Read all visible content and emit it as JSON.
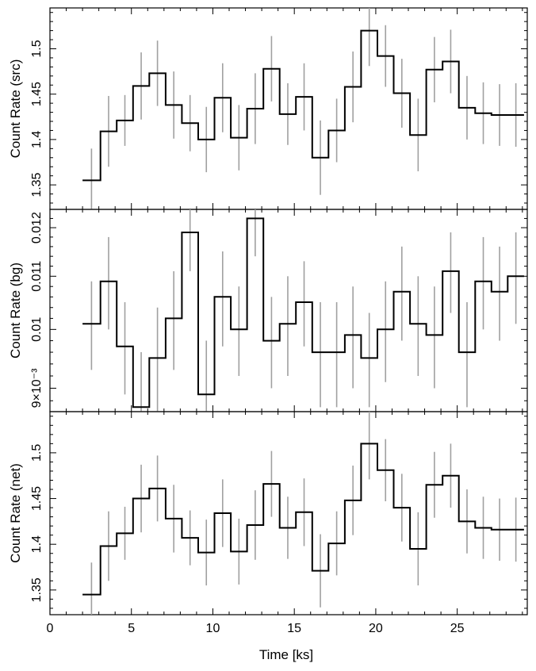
{
  "chart_data": {
    "type": "line",
    "drawstyle": "steps",
    "xlabel": "Time [ks]",
    "xlim": [
      0,
      29.3
    ],
    "xticks": [
      0,
      5,
      10,
      15,
      20,
      25
    ],
    "x": [
      2.0,
      3.1,
      4.1,
      5.1,
      6.1,
      7.1,
      8.1,
      9.1,
      10.1,
      11.1,
      12.1,
      13.1,
      14.1,
      15.1,
      16.1,
      17.1,
      18.1,
      19.1,
      20.1,
      21.1,
      22.1,
      23.1,
      24.1,
      25.1,
      26.1,
      27.1,
      28.1
    ],
    "x_end": 29.1,
    "panels": [
      {
        "name": "src",
        "ylabel": "Count Rate (src)",
        "ylim": [
          1.323,
          1.545
        ],
        "yticks": [
          1.35,
          1.4,
          1.45,
          1.5
        ],
        "ytick_labels": [
          "1.35",
          "1.4",
          "1.45",
          "1.5"
        ],
        "values": [
          1.355,
          1.409,
          1.421,
          1.459,
          1.473,
          1.438,
          1.418,
          1.4,
          1.446,
          1.402,
          1.434,
          1.478,
          1.428,
          1.447,
          1.38,
          1.41,
          1.458,
          1.52,
          1.492,
          1.451,
          1.405,
          1.477,
          1.486,
          1.435,
          1.429,
          1.427,
          1.427
        ],
        "errors": [
          0.035,
          0.039,
          0.028,
          0.037,
          0.036,
          0.037,
          0.031,
          0.036,
          0.038,
          0.036,
          0.039,
          0.036,
          0.034,
          0.037,
          0.041,
          0.035,
          0.039,
          0.039,
          0.034,
          0.038,
          0.04,
          0.036,
          0.035,
          0.035,
          0.034,
          0.034,
          0.035
        ]
      },
      {
        "name": "bg",
        "ylabel": "Count Rate (bg)",
        "ylim": [
          0.00863,
          0.0124
        ],
        "log": true,
        "yticks": [
          0.009,
          0.01,
          0.011,
          0.012
        ],
        "ytick_labels": [
          "9×10⁻³",
          "0.01",
          "0.011",
          "0.012"
        ],
        "values": [
          0.0101,
          0.0109,
          0.0097,
          0.0087,
          0.0095,
          0.0102,
          0.0119,
          0.0089,
          0.0106,
          0.01,
          0.0122,
          0.0098,
          0.0101,
          0.0105,
          0.0096,
          0.0096,
          0.0099,
          0.0095,
          0.01,
          0.0107,
          0.0101,
          0.0099,
          0.0111,
          0.0096,
          0.0109,
          0.0107,
          0.011
        ],
        "errors": [
          0.0008,
          0.0009,
          0.0008,
          0.0009,
          0.0009,
          0.0009,
          0.0008,
          0.0009,
          0.0009,
          0.0008,
          0.0008,
          0.0008,
          0.0009,
          0.0008,
          0.0009,
          0.0009,
          0.0009,
          0.0008,
          0.0009,
          0.0009,
          0.0009,
          0.0009,
          0.0008,
          0.0009,
          0.0009,
          0.0009,
          0.0009
        ]
      },
      {
        "name": "net",
        "ylabel": "Count Rate (net)",
        "ylim": [
          1.323,
          1.545
        ],
        "yticks": [
          1.35,
          1.4,
          1.45,
          1.5
        ],
        "ytick_labels": [
          "1.35",
          "1.4",
          "1.45",
          "1.5"
        ],
        "values": [
          1.345,
          1.398,
          1.412,
          1.45,
          1.461,
          1.428,
          1.407,
          1.391,
          1.434,
          1.392,
          1.421,
          1.466,
          1.418,
          1.435,
          1.371,
          1.401,
          1.448,
          1.51,
          1.481,
          1.44,
          1.395,
          1.465,
          1.475,
          1.425,
          1.418,
          1.416,
          1.416
        ],
        "errors": [
          0.035,
          0.038,
          0.029,
          0.037,
          0.036,
          0.037,
          0.03,
          0.036,
          0.037,
          0.036,
          0.038,
          0.036,
          0.034,
          0.037,
          0.04,
          0.035,
          0.038,
          0.039,
          0.034,
          0.037,
          0.04,
          0.036,
          0.035,
          0.035,
          0.034,
          0.034,
          0.035
        ]
      }
    ]
  }
}
